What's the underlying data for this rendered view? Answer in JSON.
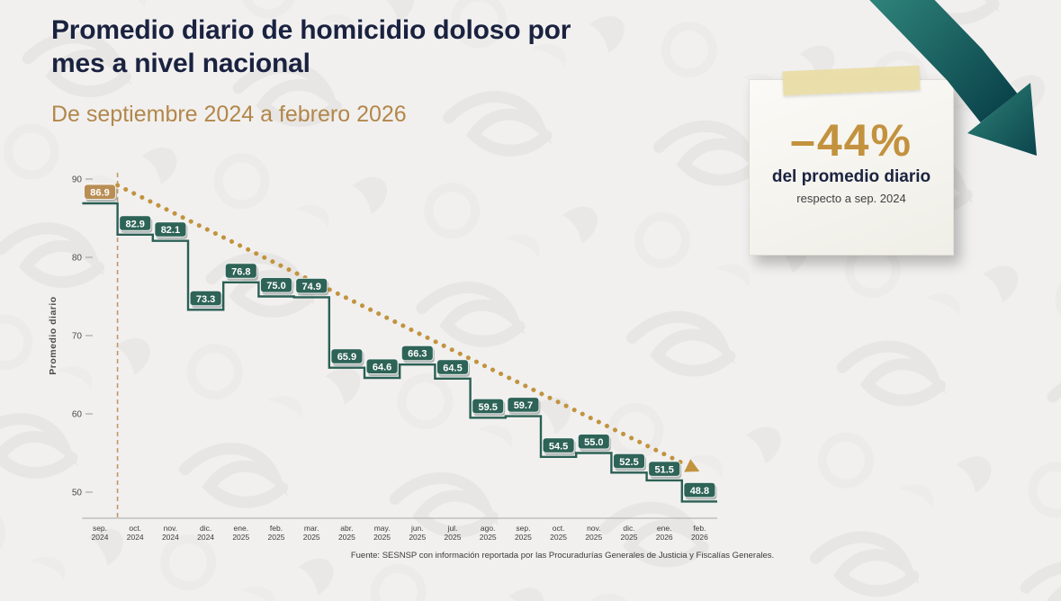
{
  "header": {
    "title_line1": "Promedio diario de homicidio doloso por",
    "title_line2": "mes a nivel nacional",
    "subtitle": "De septiembre 2024 a febrero 2026"
  },
  "badge": {
    "percent": "–44%",
    "caption": "del promedio diario",
    "subcaption": "respecto a sep. 2024"
  },
  "footer": {
    "source": "Fuente: SESNSP con información reportada por las Procuradurías Generales de Justicia y Fiscalías Generales."
  },
  "chart_data": {
    "type": "line",
    "style": "step",
    "title": "Promedio diario de homicidio doloso por mes a nivel nacional",
    "subtitle": "De septiembre 2024 a febrero 2026",
    "ylabel": "Promedio diario",
    "xlabel": "",
    "ylim": [
      46,
      91
    ],
    "y_ticks": [
      50,
      60,
      70,
      80,
      90
    ],
    "grid": false,
    "legend": false,
    "categories": [
      "sep. 2024",
      "oct. 2024",
      "nov. 2024",
      "dic. 2024",
      "ene. 2025",
      "feb. 2025",
      "mar. 2025",
      "abr. 2025",
      "may. 2025",
      "jun. 2025",
      "jul. 2025",
      "ago. 2025",
      "sep. 2025",
      "oct. 2025",
      "nov. 2025",
      "dic. 2025",
      "ene. 2026",
      "feb. 2026"
    ],
    "values": [
      86.9,
      82.9,
      82.1,
      73.3,
      76.8,
      75.0,
      74.9,
      65.9,
      64.6,
      66.3,
      64.5,
      59.5,
      59.7,
      54.5,
      55.0,
      52.5,
      51.5,
      48.8
    ],
    "highlight_index": 0,
    "annotations": {
      "change_badge": "–44% del promedio diario respecto a sep. 2024",
      "trend_line": {
        "style": "dotted",
        "color": "#c2933f"
      },
      "reference_line": {
        "style": "dashed",
        "color": "#bf9a62",
        "at_category": "sep. 2024"
      }
    },
    "colors": {
      "step_line": "#2b6054",
      "label_bg": "#2e6357",
      "label_bg_highlight": "#b98e55",
      "label_text": "#ffffff",
      "trend": "#c2933f",
      "axis_text": "#4a4a4a"
    }
  }
}
